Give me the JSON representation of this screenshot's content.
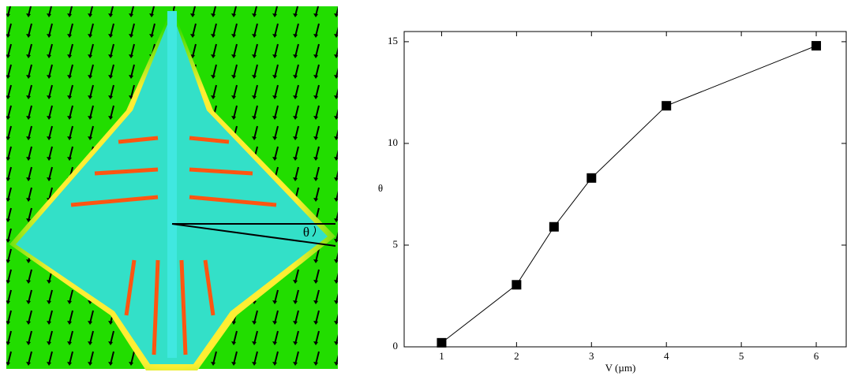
{
  "image_annotation": "θ",
  "chart_data": {
    "type": "line",
    "x_label": "V (µm)",
    "y_label": "θ",
    "x": [
      1,
      2,
      2.5,
      3,
      4,
      6
    ],
    "series": [
      {
        "name": "θ",
        "color": "#000000",
        "values": [
          0.2,
          3.05,
          5.9,
          8.3,
          11.85,
          14.8
        ]
      }
    ],
    "xlim": [
      0.5,
      6.4
    ],
    "xticks": [
      1,
      2,
      3,
      4,
      5,
      6
    ],
    "ylim": [
      0,
      15.5
    ],
    "yticks": [
      0,
      5,
      10,
      15
    ],
    "grid": false
  }
}
